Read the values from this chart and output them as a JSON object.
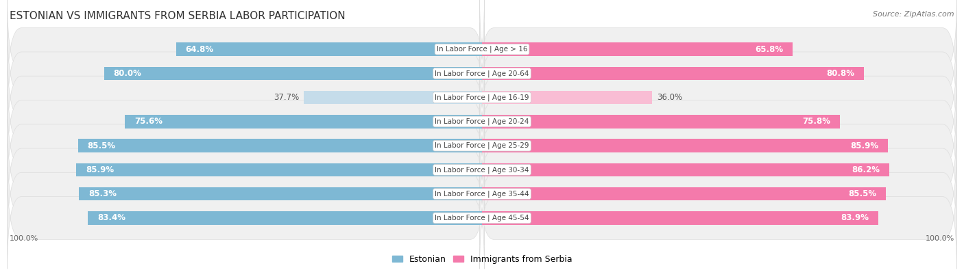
{
  "title": "ESTONIAN VS IMMIGRANTS FROM SERBIA LABOR PARTICIPATION",
  "source": "Source: ZipAtlas.com",
  "categories": [
    "In Labor Force | Age > 16",
    "In Labor Force | Age 20-64",
    "In Labor Force | Age 16-19",
    "In Labor Force | Age 20-24",
    "In Labor Force | Age 25-29",
    "In Labor Force | Age 30-34",
    "In Labor Force | Age 35-44",
    "In Labor Force | Age 45-54"
  ],
  "estonian_values": [
    64.8,
    80.0,
    37.7,
    75.6,
    85.5,
    85.9,
    85.3,
    83.4
  ],
  "serbia_values": [
    65.8,
    80.8,
    36.0,
    75.8,
    85.9,
    86.2,
    85.5,
    83.9
  ],
  "max_value": 100.0,
  "estonian_color": "#7eb8d4",
  "estonian_color_light": "#c5dcea",
  "serbia_color": "#f47aab",
  "serbia_color_light": "#f9bdd4",
  "row_bg_color": "#efefef",
  "row_bg_alt": "#e5e5e5",
  "pill_bg_color": "#f7f7f7",
  "title_fontsize": 11,
  "source_fontsize": 8,
  "bar_label_fontsize": 8.5,
  "category_fontsize": 7.5,
  "legend_fontsize": 9,
  "axis_label_fontsize": 8
}
